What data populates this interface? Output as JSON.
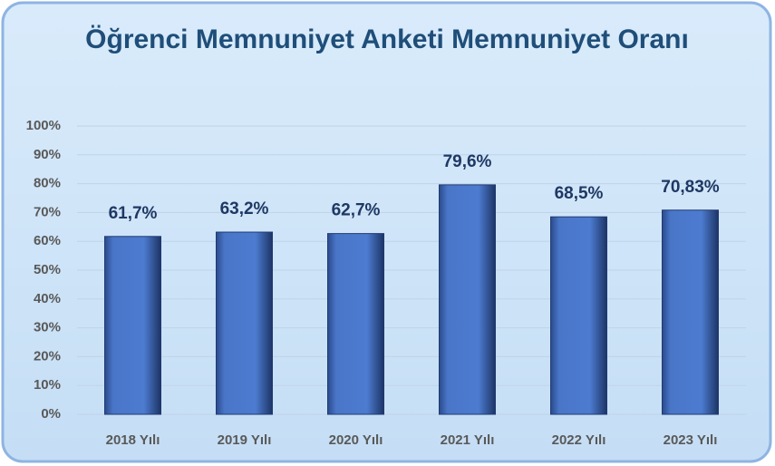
{
  "chart_data": {
    "type": "bar",
    "title": "Öğrenci Memnuniyet Anketi Memnuniyet Oranı",
    "categories": [
      "2018 Yılı",
      "2019 Yılı",
      "2020 Yılı",
      "2021 Yılı",
      "2022 Yılı",
      "2023 Yılı"
    ],
    "values": [
      61.7,
      63.2,
      62.7,
      79.6,
      68.5,
      70.83
    ],
    "value_labels": [
      "61,7%",
      "63,2%",
      "62,7%",
      "79,6%",
      "68,5%",
      "70,83%"
    ],
    "color": "#4472c4",
    "ylim": [
      0,
      100
    ],
    "yticks": [
      {
        "value": 0,
        "label": "0%"
      },
      {
        "value": 10,
        "label": "10%"
      },
      {
        "value": 20,
        "label": "20%"
      },
      {
        "value": 30,
        "label": "30%"
      },
      {
        "value": 40,
        "label": "40%"
      },
      {
        "value": 50,
        "label": "50%"
      },
      {
        "value": 60,
        "label": "60%"
      },
      {
        "value": 70,
        "label": "70%"
      },
      {
        "value": 80,
        "label": "80%"
      },
      {
        "value": 90,
        "label": "90%"
      },
      {
        "value": 100,
        "label": "100%"
      }
    ],
    "grid": true
  }
}
